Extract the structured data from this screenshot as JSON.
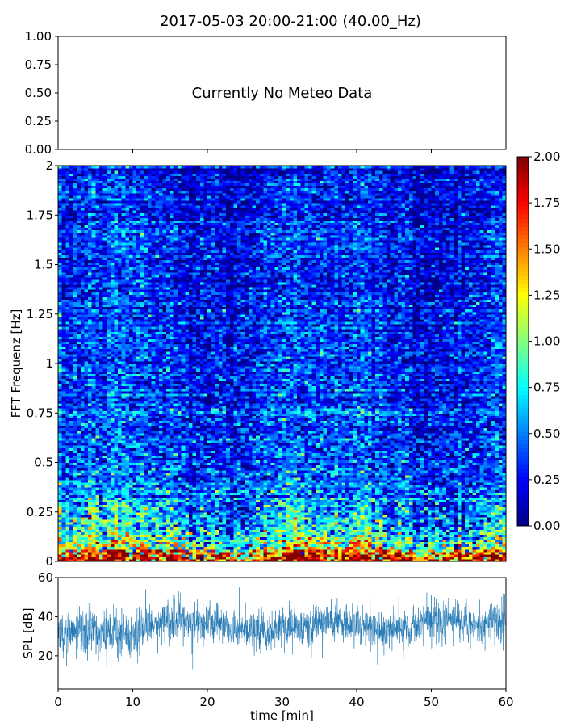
{
  "title": "2017-05-03 20:00-21:00 (40.00_Hz)",
  "chart_data": [
    {
      "type": "line",
      "panel": "meteo",
      "annotation": "Currently No Meteo Data",
      "ylim": [
        0,
        1
      ],
      "yticks": [
        "0.00",
        "0.25",
        "0.50",
        "0.75",
        "1.00"
      ],
      "xlim": [
        0,
        60
      ],
      "series": []
    },
    {
      "type": "heatmap",
      "panel": "spectrogram",
      "ylabel": "FFT Frequenz [Hz]",
      "ylim": [
        0,
        2
      ],
      "yticks": [
        "0",
        "0.25",
        "0.5",
        "0.75",
        "1",
        "1.25",
        "1.5",
        "1.75",
        "2"
      ],
      "xlim": [
        0,
        60
      ],
      "colormap": "jet",
      "color_range": [
        0,
        2
      ],
      "colorbar_ticks": [
        "0.00",
        "0.25",
        "0.50",
        "0.75",
        "1.00",
        "1.25",
        "1.50",
        "1.75",
        "2.00"
      ],
      "grid_resolution": {
        "time_bins": 120,
        "freq_bins": 160
      },
      "value_profile": [
        {
          "freq": 0.0,
          "mean": 1.5
        },
        {
          "freq": 0.05,
          "mean": 1.1
        },
        {
          "freq": 0.1,
          "mean": 0.85
        },
        {
          "freq": 0.2,
          "mean": 0.65
        },
        {
          "freq": 0.3,
          "mean": 0.5
        },
        {
          "freq": 0.5,
          "mean": 0.4
        },
        {
          "freq": 1.0,
          "mean": 0.3
        },
        {
          "freq": 2.0,
          "mean": 0.25
        }
      ]
    },
    {
      "type": "line",
      "panel": "spl",
      "ylabel": "SPL [dB]",
      "xlabel": "time [min]",
      "xlim": [
        0,
        60
      ],
      "ylim": [
        3,
        60
      ],
      "xticks": [
        "0",
        "10",
        "20",
        "30",
        "40",
        "50",
        "60"
      ],
      "yticks": [
        "20",
        "40",
        "60"
      ],
      "color": "#1f77b4",
      "series": [
        {
          "x": [
            0,
            2,
            4,
            6,
            8,
            10,
            12,
            14,
            16,
            18,
            20,
            22,
            24,
            26,
            28,
            30,
            32,
            34,
            36,
            38,
            40,
            42,
            44,
            46,
            48,
            50,
            52,
            54,
            56,
            58,
            60
          ],
          "mean": [
            31,
            32,
            35,
            33,
            31,
            30,
            34,
            38,
            37,
            37,
            37,
            35,
            33,
            32,
            32,
            34,
            35,
            36,
            38,
            37,
            36,
            35,
            33,
            34,
            36,
            39,
            38,
            37,
            36,
            37,
            37
          ],
          "spread": [
            8,
            8,
            9,
            8,
            8,
            8,
            8,
            7,
            7,
            8,
            7,
            7,
            7,
            7,
            7,
            7,
            7,
            7,
            7,
            7,
            7,
            7,
            7,
            7,
            7,
            8,
            8,
            7,
            7,
            7,
            8
          ]
        }
      ]
    }
  ]
}
